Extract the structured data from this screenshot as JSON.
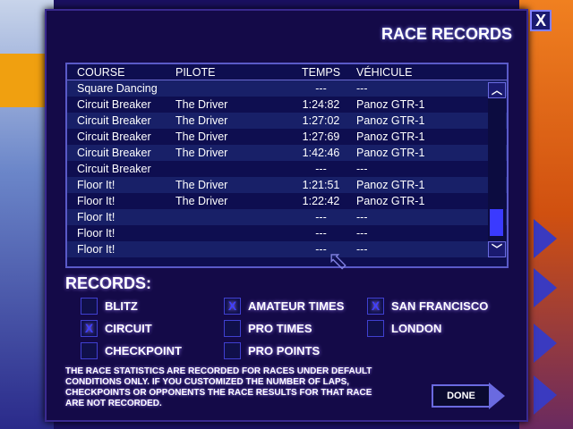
{
  "title": "RACE RECORDS",
  "close_label": "X",
  "table": {
    "headers": [
      "COURSE",
      "PILOTE",
      "TEMPS",
      "VÉHICULE"
    ],
    "rows": [
      [
        "Square Dancing",
        "",
        "---",
        "---"
      ],
      [
        "Circuit Breaker",
        "The Driver",
        "1:24:82",
        "Panoz GTR-1"
      ],
      [
        "Circuit Breaker",
        "The Driver",
        "1:27:02",
        "Panoz GTR-1"
      ],
      [
        "Circuit Breaker",
        "The Driver",
        "1:27:69",
        "Panoz GTR-1"
      ],
      [
        "Circuit Breaker",
        "The Driver",
        "1:42:46",
        "Panoz GTR-1"
      ],
      [
        "Circuit Breaker",
        "",
        "---",
        "---"
      ],
      [
        "Floor It!",
        "The Driver",
        "1:21:51",
        "Panoz GTR-1"
      ],
      [
        "Floor It!",
        "The Driver",
        "1:22:42",
        "Panoz GTR-1"
      ],
      [
        "Floor It!",
        "",
        "---",
        "---"
      ],
      [
        "Floor It!",
        "",
        "---",
        "---"
      ],
      [
        "Floor It!",
        "",
        "---",
        "---"
      ]
    ]
  },
  "records": {
    "heading": "RECORDS:",
    "options": [
      {
        "label": "BLITZ",
        "checked": false
      },
      {
        "label": "CIRCUIT",
        "checked": true
      },
      {
        "label": "CHECKPOINT",
        "checked": false
      },
      {
        "label": "AMATEUR TIMES",
        "checked": true
      },
      {
        "label": "PRO TIMES",
        "checked": false
      },
      {
        "label": "PRO POINTS",
        "checked": false
      },
      {
        "label": "SAN FRANCISCO",
        "checked": true
      },
      {
        "label": "LONDON",
        "checked": false
      }
    ]
  },
  "note": "THE RACE STATISTICS ARE RECORDED FOR RACES UNDER DEFAULT CONDITIONS ONLY.  IF YOU CUSTOMIZED THE NUMBER OF LAPS, CHECKPOINTS OR OPPONENTS THE RACE RESULTS FOR THAT RACE ARE NOT RECORDED.",
  "done_label": "DONE",
  "check_mark": "X"
}
